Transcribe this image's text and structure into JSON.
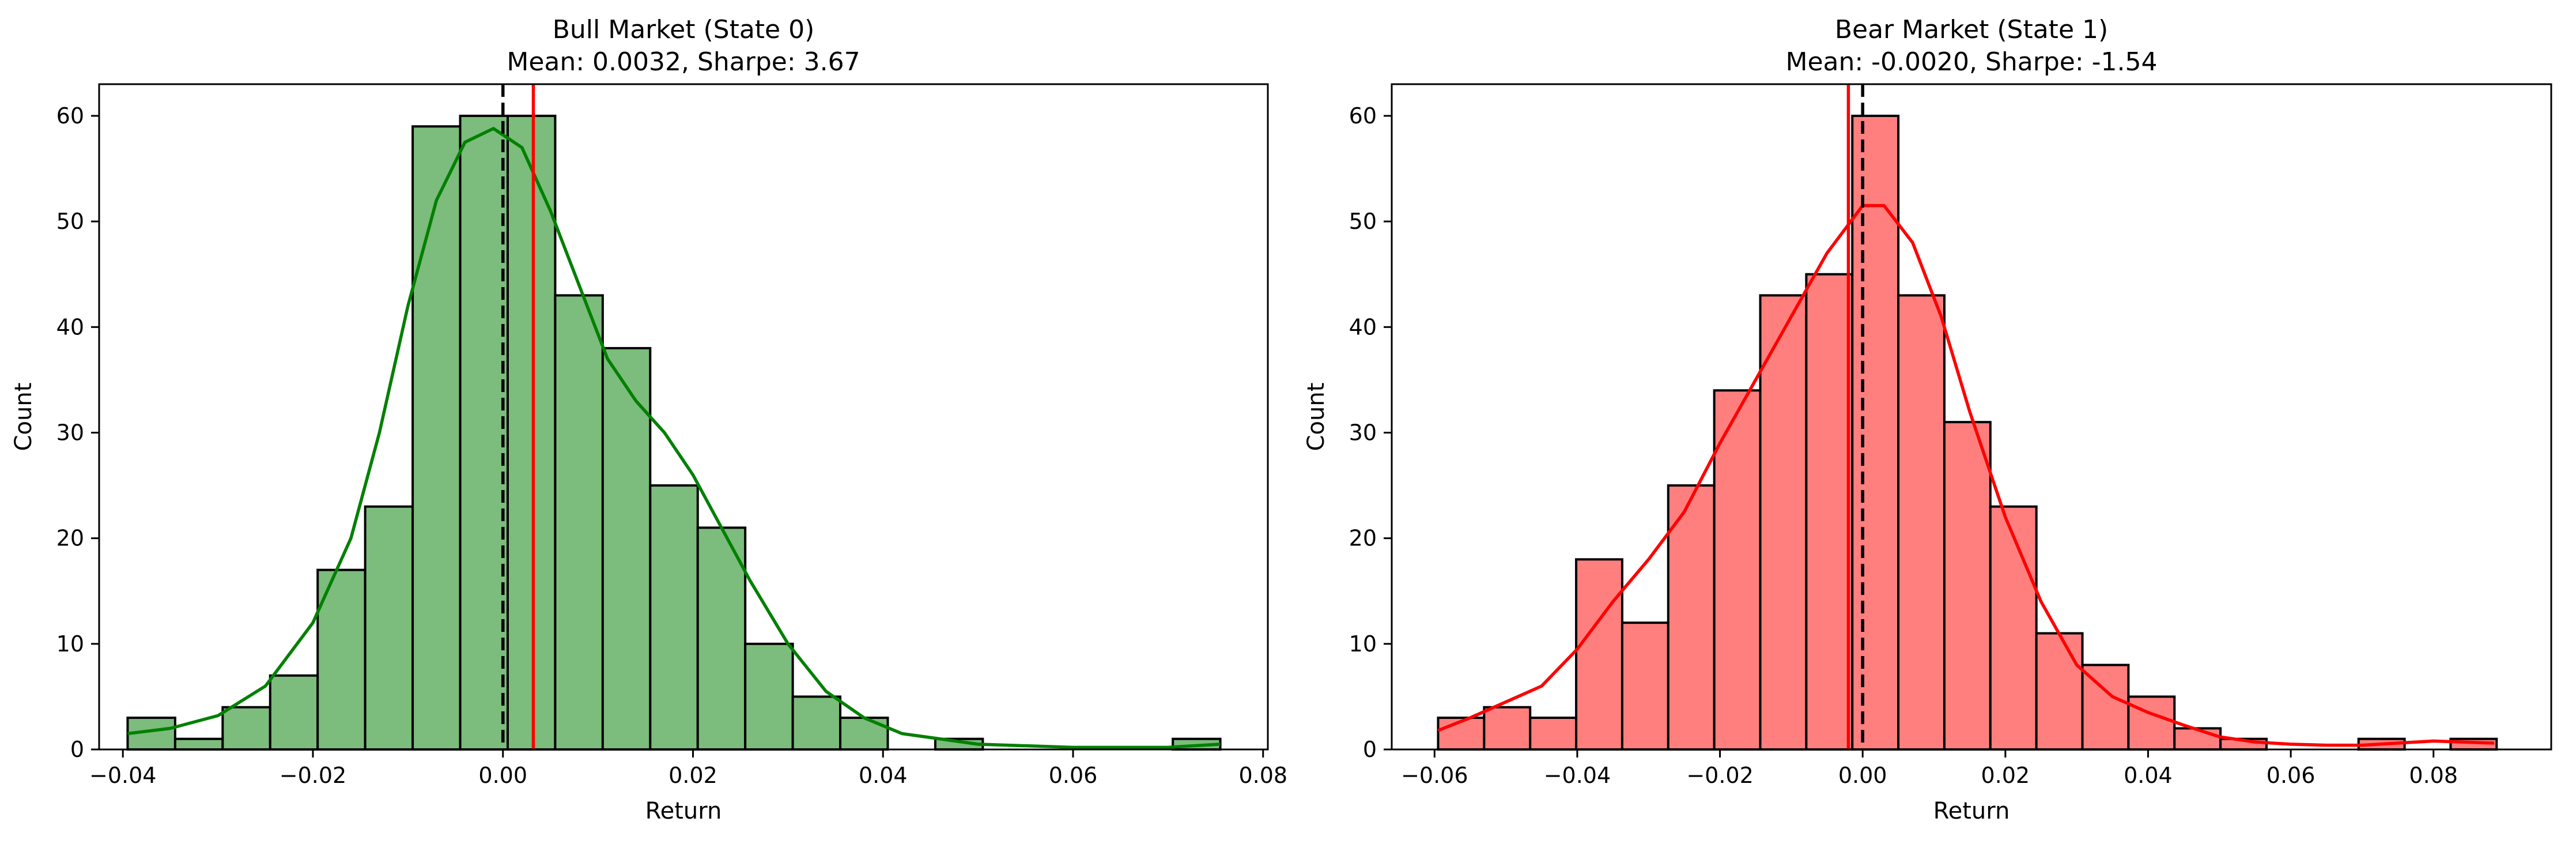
{
  "chart_data": [
    {
      "type": "bar",
      "title": "Bull Market (State 0)",
      "subtitle": "Mean: 0.0032, Sharpe: 3.67",
      "xlabel": "Return",
      "ylabel": "Count",
      "xlim": [
        -0.0425,
        0.0805
      ],
      "ylim": [
        0,
        63
      ],
      "xticks": [
        -0.04,
        -0.02,
        0.0,
        0.02,
        0.04,
        0.06,
        0.08
      ],
      "xtick_labels": [
        "−0.04",
        "−0.02",
        "0.00",
        "0.02",
        "0.04",
        "0.06",
        "0.08"
      ],
      "yticks": [
        0,
        10,
        20,
        30,
        40,
        50,
        60
      ],
      "ytick_labels": [
        "0",
        "10",
        "20",
        "30",
        "40",
        "50",
        "60"
      ],
      "grid": false,
      "bar_color": "#7cbc7c",
      "edge_color": "#000000",
      "kde_color": "#008000",
      "mean_line_color": "#ff0000",
      "zero_line_color": "#000000",
      "bin_start": -0.0395,
      "bin_width": 0.005,
      "counts": [
        3,
        1,
        4,
        7,
        17,
        23,
        59,
        60,
        60,
        43,
        38,
        25,
        21,
        10,
        5,
        3,
        0,
        1,
        0,
        0,
        0,
        0,
        1
      ],
      "mean": 0.0032,
      "zero": 0.0,
      "kde": [
        [
          -0.0395,
          1.5
        ],
        [
          -0.035,
          2.0
        ],
        [
          -0.03,
          3.2
        ],
        [
          -0.025,
          6.0
        ],
        [
          -0.02,
          12.0
        ],
        [
          -0.016,
          20.0
        ],
        [
          -0.013,
          30.0
        ],
        [
          -0.01,
          42.0
        ],
        [
          -0.007,
          52.0
        ],
        [
          -0.004,
          57.5
        ],
        [
          -0.001,
          58.8
        ],
        [
          0.002,
          57.0
        ],
        [
          0.005,
          51.0
        ],
        [
          0.008,
          44.0
        ],
        [
          0.011,
          37.0
        ],
        [
          0.014,
          33.0
        ],
        [
          0.017,
          30.0
        ],
        [
          0.02,
          26.0
        ],
        [
          0.023,
          21.0
        ],
        [
          0.026,
          16.0
        ],
        [
          0.03,
          10.0
        ],
        [
          0.034,
          5.5
        ],
        [
          0.038,
          3.0
        ],
        [
          0.042,
          1.5
        ],
        [
          0.05,
          0.5
        ],
        [
          0.06,
          0.2
        ],
        [
          0.07,
          0.2
        ],
        [
          0.0755,
          0.5
        ]
      ]
    },
    {
      "type": "bar",
      "title": "Bear Market (State 1)",
      "subtitle": "Mean: -0.0020, Sharpe: -1.54",
      "xlabel": "Return",
      "ylabel": "Count",
      "xlim": [
        -0.066,
        0.0965
      ],
      "ylim": [
        0,
        63
      ],
      "xticks": [
        -0.06,
        -0.04,
        -0.02,
        0.0,
        0.02,
        0.04,
        0.06,
        0.08
      ],
      "xtick_labels": [
        "−0.06",
        "−0.04",
        "−0.02",
        "0.00",
        "0.02",
        "0.04",
        "0.06",
        "0.08"
      ],
      "yticks": [
        0,
        10,
        20,
        30,
        40,
        50,
        60
      ],
      "ytick_labels": [
        "0",
        "10",
        "20",
        "30",
        "40",
        "50",
        "60"
      ],
      "grid": false,
      "bar_color": "#ff7f7f",
      "edge_color": "#000000",
      "kde_color": "#ff0000",
      "mean_line_color": "#ff0000",
      "zero_line_color": "#000000",
      "bin_start": -0.0595,
      "bin_width": 0.00645,
      "counts": [
        3,
        4,
        3,
        18,
        12,
        25,
        34,
        43,
        45,
        60,
        43,
        31,
        23,
        11,
        8,
        5,
        2,
        1,
        0,
        0,
        1,
        0,
        1
      ],
      "mean": -0.002,
      "zero": 0.0,
      "kde": [
        [
          -0.0595,
          1.8
        ],
        [
          -0.055,
          3.0
        ],
        [
          -0.05,
          4.5
        ],
        [
          -0.045,
          6.0
        ],
        [
          -0.04,
          9.5
        ],
        [
          -0.035,
          14.0
        ],
        [
          -0.03,
          18.0
        ],
        [
          -0.025,
          22.5
        ],
        [
          -0.02,
          29.0
        ],
        [
          -0.015,
          35.0
        ],
        [
          -0.01,
          41.0
        ],
        [
          -0.005,
          47.0
        ],
        [
          0.0,
          51.5
        ],
        [
          0.003,
          51.5
        ],
        [
          0.007,
          48.0
        ],
        [
          0.011,
          41.0
        ],
        [
          0.015,
          32.0
        ],
        [
          0.02,
          22.0
        ],
        [
          0.025,
          14.0
        ],
        [
          0.03,
          8.0
        ],
        [
          0.035,
          5.0
        ],
        [
          0.04,
          3.5
        ],
        [
          0.045,
          2.3
        ],
        [
          0.05,
          1.2
        ],
        [
          0.055,
          0.7
        ],
        [
          0.06,
          0.5
        ],
        [
          0.065,
          0.4
        ],
        [
          0.07,
          0.4
        ],
        [
          0.075,
          0.6
        ],
        [
          0.08,
          0.8
        ],
        [
          0.0885,
          0.6
        ]
      ]
    }
  ]
}
